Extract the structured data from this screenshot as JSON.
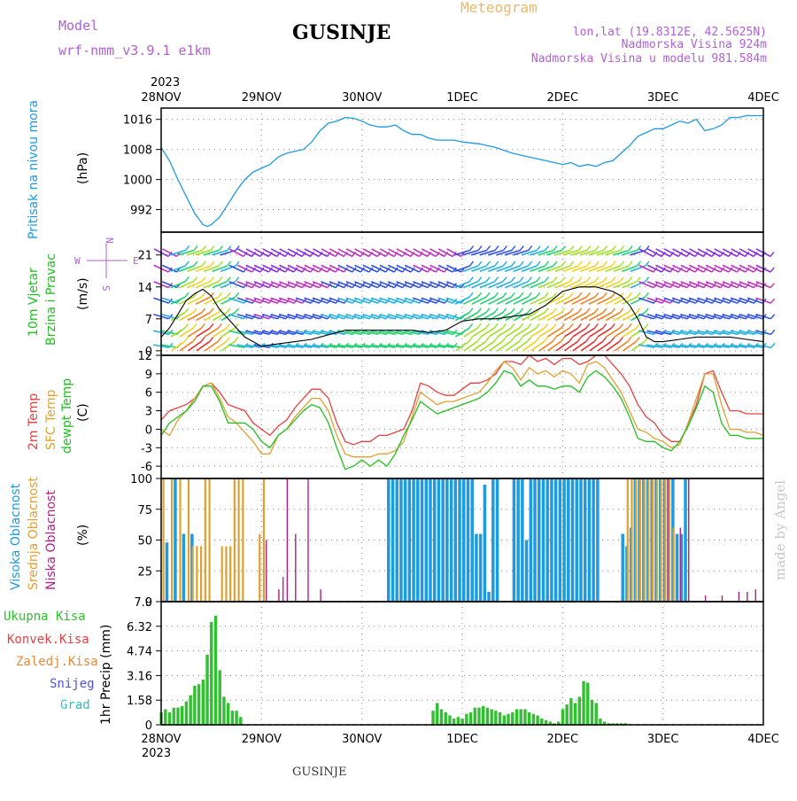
{
  "header": {
    "model_label": "Model",
    "model_value": "wrf-nmm_v3.9.1  e1km",
    "station": "GUSINJE",
    "subtitle": "Meteogram",
    "lonlat": "lon,lat (19.8312E, 42.5625N)",
    "elevation": "Nadmorska Visina 924m",
    "model_elevation": "Nadmorska Visina u modelu 981.584m",
    "footer_station": "GUSINJE",
    "watermark": "made by Angel",
    "year": "2023"
  },
  "colors": {
    "pressure": "#1e9be0",
    "temp2m": "#e84040",
    "sfc": "#e0a030",
    "dew": "#20c020",
    "cloud_high": "#1e9be0",
    "cloud_mid": "#e0a030",
    "cloud_low": "#b0208a",
    "precip": "#30c030",
    "purple": "#b15fd6"
  },
  "x_axis": {
    "range": [
      0,
      144
    ],
    "tick_labels": [
      "28NOV",
      "29NOV",
      "30NOV",
      "1DEC",
      "2DEC",
      "3DEC",
      "4DEC"
    ],
    "tick_hours": [
      0,
      24,
      48,
      72,
      96,
      120,
      144
    ]
  },
  "panels": {
    "pressure": {
      "ylabel_left": "Pritisak na nivou mora",
      "unit": "(hPa)",
      "ylim": [
        986,
        1019
      ],
      "ticks": [
        "992",
        "1000",
        "1008",
        "1016"
      ]
    },
    "wind": {
      "ylabel_left": "10m Vjetar",
      "ylabel_left2": "Brzina i Pravac",
      "unit": "(m/s)",
      "ylim": [
        -1,
        26
      ],
      "ticks": [
        "0",
        "7",
        "14",
        "21"
      ],
      "compass": {
        "n": "N",
        "s": "S",
        "e": "E",
        "w": "W"
      }
    },
    "temp": {
      "ylabel_a": "2m Temp",
      "ylabel_b": "SFC Temp",
      "ylabel_c": "dewpt Temp",
      "unit": "(C)",
      "ylim": [
        -8,
        12
      ],
      "ticks": [
        "-6",
        "-3",
        "0",
        "3",
        "6",
        "9",
        "12"
      ]
    },
    "cloud": {
      "ylabel_a": "Visoka Oblacnost",
      "ylabel_b": "Srednja Oblacnost",
      "ylabel_c": "Niska Oblacnost",
      "unit": "(%)",
      "ylim": [
        0,
        100
      ],
      "ticks": [
        "0",
        "25",
        "50",
        "75",
        "100"
      ]
    },
    "precip": {
      "legend": [
        "Ukupna Kisa",
        "Konvek.Kisa",
        "Zaledj.Kisa",
        "Snijeg",
        "Grad"
      ],
      "legend_colors": [
        "#30c030",
        "#e84040",
        "#e88a3a",
        "#5050e0",
        "#30c0c0"
      ],
      "ylabel": "1hr Precip (mm)",
      "ylim": [
        0,
        7.9
      ],
      "ticks": [
        "0",
        "1.58",
        "3.16",
        "4.74",
        "6.32",
        "7.9"
      ]
    }
  },
  "chart_data": [
    {
      "type": "line",
      "name": "pressure",
      "ylabel": "Pritisak na nivou mora (hPa)",
      "x": [
        0,
        2,
        4,
        6,
        8,
        10,
        11,
        12,
        14,
        16,
        18,
        20,
        22,
        24,
        26,
        28,
        30,
        32,
        34,
        36,
        38,
        40,
        42,
        44,
        46,
        48,
        50,
        52,
        54,
        56,
        58,
        60,
        62,
        64,
        66,
        68,
        70,
        72,
        76,
        80,
        84,
        88,
        92,
        96,
        98,
        100,
        102,
        104,
        106,
        108,
        110,
        112,
        114,
        116,
        118,
        120,
        122,
        124,
        126,
        128,
        130,
        132,
        134,
        136,
        138,
        140,
        142,
        144
      ],
      "y": [
        1008.5,
        1005,
        1000,
        995.5,
        991,
        988,
        987.5,
        988,
        990,
        993.5,
        997,
        1000,
        1002,
        1003,
        1004,
        1006,
        1007,
        1007.5,
        1008,
        1010,
        1013,
        1015,
        1015.5,
        1016.5,
        1016.3,
        1015.5,
        1014.5,
        1014,
        1014,
        1014.5,
        1013,
        1012,
        1012,
        1011,
        1010.5,
        1010.5,
        1010.5,
        1010,
        1009.5,
        1008.5,
        1007,
        1006,
        1005,
        1004,
        1004.5,
        1003.5,
        1004,
        1003.5,
        1004.5,
        1005,
        1007,
        1009,
        1011.5,
        1012.5,
        1013.5,
        1013.5,
        1014.5,
        1015.5,
        1015,
        1016,
        1013,
        1013.5,
        1014.5,
        1016.5,
        1016.5,
        1017,
        1017,
        1017
      ]
    },
    {
      "type": "line",
      "name": "wind_speed",
      "ylabel": "10m Vjetar Brzina i Pravac (m/s)",
      "x": [
        0,
        2,
        4,
        6,
        8,
        10,
        12,
        14,
        16,
        18,
        20,
        22,
        24,
        28,
        32,
        36,
        40,
        44,
        48,
        52,
        56,
        60,
        64,
        68,
        72,
        76,
        80,
        84,
        88,
        92,
        96,
        100,
        104,
        108,
        110,
        112,
        114,
        116,
        118,
        120,
        124,
        128,
        132,
        136,
        140,
        144
      ],
      "y": [
        3,
        5,
        8,
        11,
        12.5,
        13.5,
        12,
        9,
        7,
        5,
        3,
        2,
        1,
        1.5,
        2,
        2.5,
        3.5,
        4.5,
        4.5,
        4.5,
        4.5,
        4.5,
        4,
        4.5,
        6.5,
        7,
        7,
        7.5,
        8,
        10,
        13,
        14,
        14,
        13,
        12,
        10,
        7,
        3,
        2,
        2,
        2.5,
        3,
        3,
        3,
        2.5,
        2
      ]
    },
    {
      "type": "line",
      "series": [
        {
          "name": "2m Temp",
          "x": [
            0,
            2,
            4,
            6,
            8,
            10,
            12,
            14,
            16,
            18,
            20,
            22,
            24,
            26,
            28,
            30,
            32,
            34,
            36,
            38,
            40,
            42,
            44,
            46,
            48,
            50,
            52,
            54,
            56,
            58,
            60,
            62,
            64,
            66,
            68,
            70,
            72,
            74,
            76,
            78,
            80,
            82,
            84,
            86,
            88,
            90,
            92,
            94,
            96,
            98,
            100,
            102,
            104,
            106,
            108,
            110,
            112,
            114,
            116,
            118,
            120,
            122,
            124,
            126,
            128,
            130,
            132,
            134,
            136,
            138,
            140,
            142,
            144
          ],
          "y": [
            1.5,
            3,
            3.5,
            4,
            5,
            7,
            7.5,
            6,
            4,
            3.5,
            3,
            1,
            0,
            -1,
            0.5,
            1.5,
            3.5,
            5,
            6.5,
            6.5,
            5,
            1,
            -2,
            -2.5,
            -2,
            -2,
            -1,
            -1,
            -0.5,
            0,
            3,
            7.5,
            7,
            6,
            5.5,
            5.5,
            6.5,
            7.5,
            7.5,
            8,
            9,
            11,
            11,
            10.5,
            12,
            11,
            11.5,
            10.5,
            11.5,
            11.5,
            10.5,
            11,
            12,
            12,
            10.5,
            9,
            7,
            4,
            2,
            1,
            -1,
            -2,
            -2,
            0.5,
            4,
            9,
            9.5,
            6,
            3,
            3,
            2.5,
            2.5,
            2.5
          ]
        },
        {
          "name": "SFC Temp",
          "x": [
            0,
            2,
            4,
            6,
            8,
            10,
            12,
            14,
            16,
            18,
            20,
            22,
            24,
            26,
            28,
            30,
            32,
            34,
            36,
            38,
            40,
            42,
            44,
            46,
            48,
            50,
            52,
            54,
            56,
            58,
            60,
            62,
            64,
            66,
            68,
            70,
            72,
            74,
            76,
            78,
            80,
            82,
            84,
            86,
            88,
            90,
            92,
            94,
            96,
            98,
            100,
            102,
            104,
            106,
            108,
            110,
            112,
            114,
            116,
            118,
            120,
            122,
            124,
            126,
            128,
            130,
            132,
            134,
            136,
            138,
            140,
            142,
            144
          ],
          "y": [
            0,
            -1,
            1.5,
            3,
            5,
            7,
            7.5,
            5,
            2,
            1,
            -0.5,
            -2,
            -4,
            -4,
            -1,
            0,
            2,
            3.5,
            5,
            5,
            3,
            -1,
            -4,
            -4.5,
            -4.5,
            -4.5,
            -4,
            -4,
            -3.5,
            -2,
            2,
            6,
            5,
            4,
            4.5,
            4.5,
            5,
            5.5,
            6,
            7.5,
            9.5,
            11,
            10,
            8,
            10,
            9,
            9.5,
            8.5,
            9.5,
            9,
            7.5,
            10.5,
            11,
            10,
            8,
            6,
            3,
            0,
            -0.5,
            -1.5,
            -2,
            -3,
            -2.5,
            1,
            5,
            9,
            9,
            4,
            0,
            0,
            -0.5,
            -0.5,
            -1
          ]
        },
        {
          "name": "dewpt Temp",
          "x": [
            0,
            2,
            4,
            6,
            8,
            10,
            12,
            14,
            16,
            18,
            20,
            22,
            24,
            26,
            28,
            30,
            32,
            34,
            36,
            38,
            40,
            42,
            44,
            46,
            48,
            50,
            52,
            54,
            56,
            58,
            60,
            62,
            64,
            66,
            68,
            70,
            72,
            74,
            76,
            78,
            80,
            82,
            84,
            86,
            88,
            90,
            92,
            94,
            96,
            98,
            100,
            102,
            104,
            106,
            108,
            110,
            112,
            114,
            116,
            118,
            120,
            122,
            124,
            126,
            128,
            130,
            132,
            134,
            136,
            138,
            140,
            142,
            144
          ],
          "y": [
            -1,
            1,
            2,
            3,
            4.5,
            7,
            7,
            4.5,
            1,
            1,
            1,
            0,
            -2,
            -3,
            -1,
            0,
            1.5,
            3,
            4,
            3.5,
            1,
            -3,
            -6.5,
            -6,
            -5,
            -6,
            -5,
            -6,
            -4,
            -1,
            1.5,
            4.5,
            3.5,
            2.5,
            3,
            3.5,
            4,
            4.5,
            5,
            6,
            7.5,
            9.5,
            9,
            7,
            8,
            7,
            7,
            6.5,
            7,
            7,
            6,
            8.5,
            9.5,
            8.5,
            7,
            5,
            2,
            -1.5,
            -2,
            -2,
            -3,
            -3.5,
            -2,
            0.5,
            3.5,
            7,
            6,
            1,
            -1,
            -1,
            -1.5,
            -1.5,
            -1.5
          ]
        }
      ],
      "ylabel": "(C)",
      "ylim": [
        -8,
        12
      ]
    },
    {
      "type": "bar",
      "name": "cloud_cover",
      "ylabel": "(%)",
      "ylim": [
        0,
        100
      ],
      "series": [
        {
          "name": "Visoka Oblacnost",
          "x": [
            1,
            3,
            5,
            7,
            54,
            55,
            56,
            57,
            58,
            59,
            60,
            61,
            62,
            63,
            64,
            65,
            66,
            67,
            68,
            69,
            70,
            71,
            72,
            73,
            74,
            75,
            76,
            77,
            78,
            79,
            80,
            84,
            85,
            86,
            87,
            88,
            89,
            90,
            91,
            92,
            93,
            94,
            95,
            96,
            97,
            98,
            99,
            100,
            101,
            102,
            103,
            104,
            110,
            111,
            112,
            113,
            114,
            115,
            116,
            117,
            118,
            119,
            120,
            121,
            122,
            123,
            124,
            125
          ],
          "y": [
            48,
            100,
            55,
            55,
            100,
            100,
            100,
            100,
            100,
            100,
            100,
            100,
            100,
            100,
            100,
            100,
            100,
            100,
            100,
            100,
            100,
            100,
            100,
            100,
            100,
            55,
            55,
            95,
            8,
            100,
            100,
            100,
            100,
            100,
            50,
            100,
            100,
            100,
            100,
            100,
            100,
            100,
            100,
            100,
            100,
            100,
            100,
            100,
            100,
            100,
            100,
            100,
            55,
            45,
            60,
            100,
            100,
            100,
            100,
            100,
            100,
            100,
            100,
            100,
            100,
            55,
            55,
            100
          ]
        },
        {
          "name": "Srednja Oblacnost",
          "x": [
            0,
            2,
            4,
            6,
            7,
            8,
            9,
            10,
            11,
            14,
            15,
            16,
            17,
            18,
            19,
            23,
            24,
            111,
            112,
            113,
            114,
            115,
            116,
            117,
            118,
            119,
            120,
            121,
            122
          ],
          "y": [
            100,
            100,
            100,
            100,
            45,
            45,
            45,
            100,
            100,
            45,
            45,
            45,
            100,
            100,
            100,
            55,
            100,
            100,
            100,
            100,
            100,
            100,
            100,
            100,
            100,
            100,
            100,
            100,
            60
          ]
        },
        {
          "name": "Niska Oblacnost",
          "x": [
            25,
            28,
            29,
            30,
            32,
            35,
            38,
            121,
            124,
            126,
            130,
            134,
            138,
            140,
            142
          ],
          "y": [
            50,
            10,
            20,
            100,
            55,
            100,
            10,
            100,
            60,
            100,
            5,
            5,
            8,
            8,
            10
          ]
        }
      ]
    },
    {
      "type": "bar",
      "name": "Ukupna Kisa",
      "ylabel": "1hr Precip (mm)",
      "ylim": [
        0,
        7.9
      ],
      "x": [
        0,
        1,
        2,
        3,
        4,
        5,
        6,
        7,
        8,
        9,
        10,
        11,
        12,
        13,
        14,
        15,
        16,
        17,
        18,
        19,
        65,
        66,
        67,
        68,
        69,
        70,
        71,
        72,
        73,
        74,
        75,
        76,
        77,
        78,
        79,
        80,
        81,
        82,
        83,
        84,
        85,
        86,
        87,
        88,
        89,
        90,
        91,
        92,
        93,
        94,
        95,
        96,
        97,
        98,
        99,
        100,
        101,
        102,
        103,
        104,
        105,
        106,
        107,
        108,
        109,
        110,
        111
      ],
      "y": [
        0.8,
        1,
        0.8,
        1.1,
        1.1,
        1.2,
        1.5,
        1.9,
        2.5,
        2.6,
        2.9,
        4.5,
        6.6,
        7,
        3.5,
        1.8,
        1.4,
        0.9,
        0.9,
        0.5,
        0.9,
        1.4,
        1,
        0.8,
        0.6,
        0.4,
        0.5,
        0.4,
        0.7,
        0.8,
        1.1,
        1.1,
        1.2,
        1.1,
        1,
        0.9,
        0.8,
        0.6,
        0.7,
        0.8,
        1,
        1,
        1,
        0.8,
        0.7,
        0.6,
        0.4,
        0.3,
        0.2,
        0.1,
        0.2,
        1,
        1.3,
        1.7,
        1.4,
        1.8,
        2.8,
        2.7,
        1.6,
        1.4,
        0.4,
        0.2,
        0.1,
        0.1,
        0.1,
        0.1,
        0.1
      ]
    }
  ]
}
